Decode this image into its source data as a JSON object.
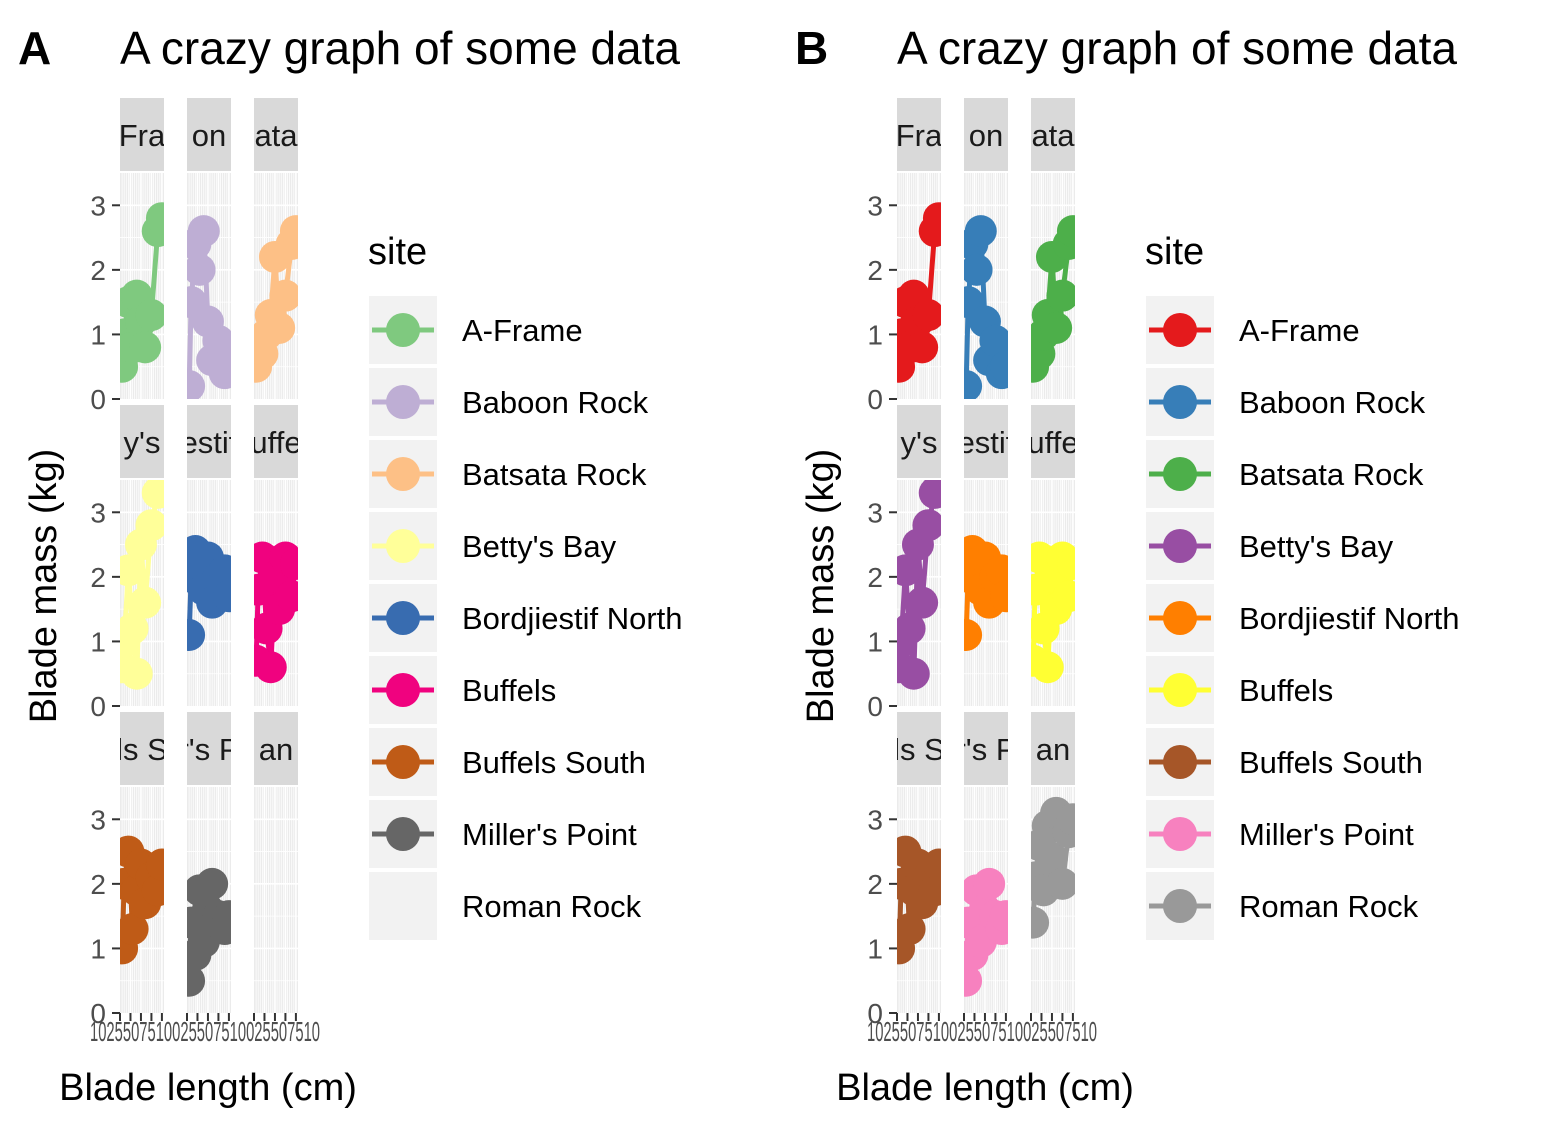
{
  "chart_data": [
    {
      "panel_tag": "A",
      "type": "line",
      "title": "A crazy graph of some data",
      "xlabel": "Blade length (cm)",
      "ylabel": "Blade mass (kg)",
      "ylim": [
        0,
        3.5
      ],
      "yticks": [
        0,
        1,
        2,
        3
      ],
      "xtick_text": "1025507510025507510025507510",
      "grid": true,
      "facets": [
        "A-Frame",
        "Baboon Rock",
        "Batsata Rock",
        "Betty's Bay",
        "Bordjiestif North",
        "Buffels",
        "Buffels South",
        "Miller's Point",
        "Roman Rock"
      ],
      "facet_strip_text": [
        "Fra",
        "on",
        "ata",
        "y's",
        "estif",
        "uffe",
        "ls S",
        "r's P",
        "an"
      ],
      "legend": {
        "title": "site",
        "entries": [
          "A-Frame",
          "Baboon Rock",
          "Batsata Rock",
          "Betty's Bay",
          "Bordjiestif North",
          "Buffels",
          "Buffels South",
          "Miller's Point",
          "Roman Rock"
        ],
        "colors": [
          "#7FC97F",
          "#BEAED4",
          "#FDC086",
          "#FFFF99",
          "#386CB0",
          "#F0027F",
          "#BF5B17",
          "#666666",
          null
        ]
      },
      "series": [
        {
          "name": "A-Frame",
          "x": [
            5,
            10,
            20,
            30,
            40,
            50,
            60,
            75,
            90,
            100
          ],
          "y": [
            0.5,
            1.0,
            1.5,
            0.8,
            1.6,
            1.2,
            0.8,
            1.3,
            2.6,
            2.8
          ]
        },
        {
          "name": "Baboon Rock",
          "x": [
            5,
            10,
            20,
            30,
            40,
            50,
            60,
            75,
            90,
            100
          ],
          "y": [
            0.2,
            1.5,
            2.4,
            2.0,
            2.6,
            1.2,
            0.6,
            0.9,
            0.4,
            0.5
          ]
        },
        {
          "name": "Batsata Rock",
          "x": [
            5,
            10,
            20,
            30,
            40,
            50,
            60,
            75,
            90,
            100
          ],
          "y": [
            0.5,
            0.9,
            0.7,
            1.0,
            1.3,
            2.2,
            1.1,
            1.6,
            2.4,
            2.6
          ]
        },
        {
          "name": "Betty's Bay",
          "x": [
            5,
            10,
            20,
            30,
            40,
            50,
            60,
            75,
            90,
            100
          ],
          "y": [
            0.6,
            1.0,
            2.1,
            1.2,
            0.5,
            2.5,
            1.6,
            2.8,
            3.3,
            3.6
          ]
        },
        {
          "name": "Bordjiestif North",
          "x": [
            5,
            10,
            20,
            30,
            40,
            50,
            60,
            75,
            90,
            100
          ],
          "y": [
            1.1,
            2.0,
            2.4,
            2.2,
            1.8,
            2.3,
            1.6,
            2.0,
            2.1,
            1.7
          ]
        },
        {
          "name": "Buffels",
          "x": [
            5,
            10,
            20,
            30,
            40,
            50,
            60,
            75,
            90,
            100
          ],
          "y": [
            0.7,
            1.8,
            2.3,
            1.2,
            0.6,
            2.0,
            1.5,
            2.3,
            1.7,
            2.2
          ]
        },
        {
          "name": "Buffels South",
          "x": [
            5,
            10,
            20,
            30,
            40,
            50,
            60,
            75,
            90,
            100
          ],
          "y": [
            1.0,
            2.0,
            2.5,
            1.3,
            1.9,
            2.3,
            1.7,
            2.1,
            1.9,
            2.3
          ]
        },
        {
          "name": "Miller's Point",
          "x": [
            5,
            10,
            20,
            30,
            40,
            50,
            60,
            75,
            90,
            100
          ],
          "y": [
            0.5,
            1.4,
            0.9,
            1.9,
            1.1,
            1.6,
            2.0,
            1.5,
            1.3,
            1.5
          ]
        },
        {
          "name": "Roman Rock",
          "x": [],
          "y": []
        }
      ]
    },
    {
      "panel_tag": "B",
      "type": "line",
      "title": "A crazy graph of some data",
      "xlabel": "Blade length (cm)",
      "ylabel": "Blade mass (kg)",
      "ylim": [
        0,
        3.5
      ],
      "yticks": [
        0,
        1,
        2,
        3
      ],
      "xtick_text": "1025507510025507510025507510",
      "grid": true,
      "facets": [
        "A-Frame",
        "Baboon Rock",
        "Batsata Rock",
        "Betty's Bay",
        "Bordjiestif North",
        "Buffels",
        "Buffels South",
        "Miller's Point",
        "Roman Rock"
      ],
      "facet_strip_text": [
        "Fra",
        "on",
        "ata",
        "y's",
        "estif",
        "uffe",
        "ls S",
        "r's P",
        "an"
      ],
      "legend": {
        "title": "site",
        "entries": [
          "A-Frame",
          "Baboon Rock",
          "Batsata Rock",
          "Betty's Bay",
          "Bordjiestif North",
          "Buffels",
          "Buffels South",
          "Miller's Point",
          "Roman Rock"
        ],
        "colors": [
          "#E41A1C",
          "#377EB8",
          "#4DAF4A",
          "#984EA3",
          "#FF7F00",
          "#FFFF33",
          "#A65628",
          "#F781BF",
          "#999999"
        ]
      },
      "series": [
        {
          "name": "A-Frame",
          "x": [
            5,
            10,
            20,
            30,
            40,
            50,
            60,
            75,
            90,
            100
          ],
          "y": [
            0.5,
            1.0,
            1.5,
            0.8,
            1.6,
            1.2,
            0.8,
            1.3,
            2.6,
            2.8
          ]
        },
        {
          "name": "Baboon Rock",
          "x": [
            5,
            10,
            20,
            30,
            40,
            50,
            60,
            75,
            90,
            100
          ],
          "y": [
            0.2,
            1.5,
            2.4,
            2.0,
            2.6,
            1.2,
            0.6,
            0.9,
            0.4,
            0.5
          ]
        },
        {
          "name": "Batsata Rock",
          "x": [
            5,
            10,
            20,
            30,
            40,
            50,
            60,
            75,
            90,
            100
          ],
          "y": [
            0.5,
            0.9,
            0.7,
            1.0,
            1.3,
            2.2,
            1.1,
            1.6,
            2.4,
            2.6
          ]
        },
        {
          "name": "Betty's Bay",
          "x": [
            5,
            10,
            20,
            30,
            40,
            50,
            60,
            75,
            90,
            100
          ],
          "y": [
            0.6,
            1.0,
            2.1,
            1.2,
            0.5,
            2.5,
            1.6,
            2.8,
            3.3,
            3.6
          ]
        },
        {
          "name": "Bordjiestif North",
          "x": [
            5,
            10,
            20,
            30,
            40,
            50,
            60,
            75,
            90,
            100
          ],
          "y": [
            1.1,
            2.0,
            2.4,
            2.2,
            1.8,
            2.3,
            1.6,
            2.0,
            2.1,
            1.7
          ]
        },
        {
          "name": "Buffels",
          "x": [
            5,
            10,
            20,
            30,
            40,
            50,
            60,
            75,
            90,
            100
          ],
          "y": [
            0.7,
            1.8,
            2.3,
            1.2,
            0.6,
            2.0,
            1.5,
            2.3,
            1.7,
            2.2
          ]
        },
        {
          "name": "Buffels South",
          "x": [
            5,
            10,
            20,
            30,
            40,
            50,
            60,
            75,
            90,
            100
          ],
          "y": [
            1.0,
            2.0,
            2.5,
            1.3,
            1.9,
            2.3,
            1.7,
            2.1,
            1.9,
            2.3
          ]
        },
        {
          "name": "Miller's Point",
          "x": [
            5,
            10,
            20,
            30,
            40,
            50,
            60,
            75,
            90,
            100
          ],
          "y": [
            0.5,
            1.4,
            0.9,
            1.9,
            1.1,
            1.6,
            2.0,
            1.5,
            1.3,
            1.5
          ]
        },
        {
          "name": "Roman Rock",
          "x": [
            5,
            10,
            20,
            30,
            40,
            50,
            60,
            75,
            90,
            100
          ],
          "y": [
            1.4,
            2.1,
            2.6,
            1.9,
            2.9,
            2.4,
            3.1,
            2.0,
            2.8,
            3.0
          ]
        }
      ]
    }
  ]
}
